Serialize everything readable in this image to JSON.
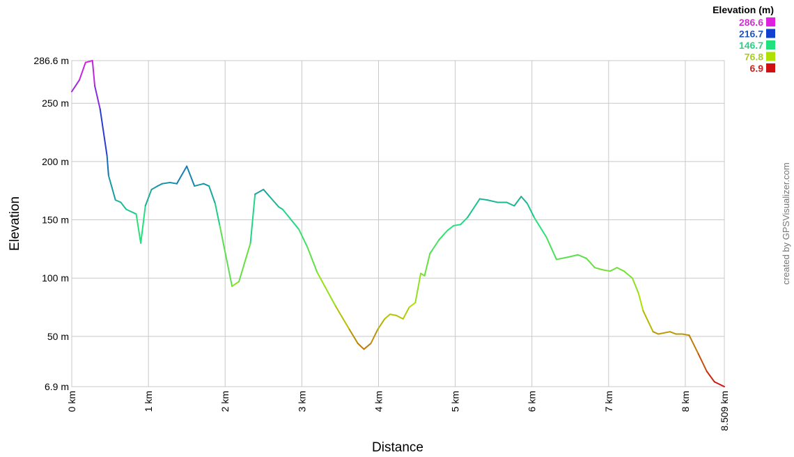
{
  "chart_data": {
    "type": "line",
    "xlabel": "Distance",
    "ylabel": "Elevation",
    "xlim": [
      0,
      8.509
    ],
    "ylim": [
      6.9,
      286.6
    ],
    "x_ticks": [
      {
        "value": 0,
        "label": "0 km"
      },
      {
        "value": 1,
        "label": "1 km"
      },
      {
        "value": 2,
        "label": "2 km"
      },
      {
        "value": 3,
        "label": "3 km"
      },
      {
        "value": 4,
        "label": "4 km"
      },
      {
        "value": 5,
        "label": "5 km"
      },
      {
        "value": 6,
        "label": "6 km"
      },
      {
        "value": 7,
        "label": "7 km"
      },
      {
        "value": 8,
        "label": "8 km"
      },
      {
        "value": 8.509,
        "label": "8.509 km"
      }
    ],
    "y_ticks": [
      {
        "value": 6.9,
        "label": "6.9 m"
      },
      {
        "value": 50,
        "label": "50 m"
      },
      {
        "value": 100,
        "label": "100 m"
      },
      {
        "value": 150,
        "label": "150 m"
      },
      {
        "value": 200,
        "label": "200 m"
      },
      {
        "value": 250,
        "label": "250 m"
      },
      {
        "value": 286.6,
        "label": "286.6 m"
      }
    ],
    "grid": true,
    "color_scale": {
      "title": "Elevation (m)",
      "placement": "top-right",
      "stops": [
        {
          "value": 286.6,
          "label": "286.6",
          "color": "#e020e0",
          "text_color": "#cc33cc"
        },
        {
          "value": 216.7,
          "label": "216.7",
          "color": "#1040d0",
          "text_color": "#2255bb"
        },
        {
          "value": 146.7,
          "label": "146.7",
          "color": "#20e080",
          "text_color": "#33cc88"
        },
        {
          "value": 76.8,
          "label": "76.8",
          "color": "#b0e000",
          "text_color": "#aacc22"
        },
        {
          "value": 6.9,
          "label": "6.9",
          "color": "#d01010",
          "text_color": "#cc2222"
        }
      ]
    },
    "series": [
      {
        "x": [
          0,
          0.1,
          0.18,
          0.27,
          0.3,
          0.37,
          0.46,
          0.48,
          0.57,
          0.64,
          0.71,
          0.84,
          0.9,
          0.96,
          1.04,
          1.12,
          1.18,
          1.28,
          1.37,
          1.5,
          1.6,
          1.72,
          1.79,
          1.87,
          1.93,
          2.09,
          2.18,
          2.33,
          2.39,
          2.5,
          2.58,
          2.7,
          2.75,
          2.96,
          3.07,
          3.2,
          3.44,
          3.62,
          3.73,
          3.81,
          3.9,
          3.99,
          4.08,
          4.15,
          4.23,
          4.32,
          4.4,
          4.48,
          4.55,
          4.6,
          4.67,
          4.79,
          4.9,
          4.98,
          5.07,
          5.16,
          5.32,
          5.42,
          5.55,
          5.67,
          5.77,
          5.86,
          5.94,
          6.03,
          6.19,
          6.32,
          6.47,
          6.6,
          6.71,
          6.82,
          6.93,
          7.02,
          7.11,
          7.2,
          7.31,
          7.39,
          7.45,
          7.58,
          7.65,
          7.8,
          7.88,
          7.96,
          8.05,
          8.17,
          8.28,
          8.38,
          8.509
        ],
        "y": [
          260,
          270,
          285,
          286.6,
          265,
          245,
          205,
          188,
          167,
          165,
          159,
          155,
          130,
          162,
          176,
          179,
          181,
          182,
          181,
          196,
          179,
          181,
          179,
          164,
          145,
          93,
          97,
          130,
          172,
          176,
          170,
          161,
          159,
          142,
          127,
          105,
          76,
          56,
          44,
          39,
          44,
          56,
          65,
          69,
          68,
          65,
          75,
          79,
          104,
          102,
          121,
          133,
          141,
          145,
          146,
          152,
          168,
          167,
          165,
          165,
          162,
          170,
          164,
          152,
          135,
          116,
          118,
          120,
          117,
          109,
          107,
          106,
          109,
          106,
          100,
          87,
          72,
          54,
          52,
          54,
          52,
          52,
          51,
          35,
          20,
          11,
          6.9
        ]
      }
    ]
  },
  "credit": "created by GPSVisualizer.com"
}
